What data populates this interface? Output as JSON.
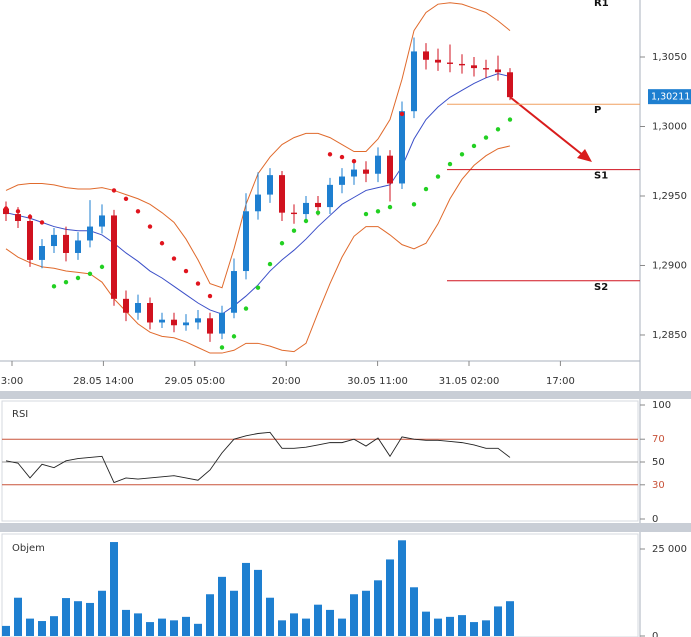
{
  "chart_data": [
    {
      "type": "candlestick",
      "x_labels": [
        "3:00",
        "28.05 14:00",
        "29.05 05:00",
        "20:00",
        "30.05 11:00",
        "31.05 02:00",
        "17:00"
      ],
      "open": [
        1.2941,
        1.2937,
        1.2932,
        1.2904,
        1.2914,
        1.2922,
        1.2909,
        1.2918,
        1.2928,
        1.2936,
        1.2876,
        1.2866,
        1.2873,
        1.2859,
        1.2861,
        1.2857,
        1.2859,
        1.2862,
        1.2851,
        1.2866,
        1.2896,
        1.2939,
        1.2951,
        1.2965,
        1.2938,
        1.2937,
        1.2945,
        1.2942,
        1.2958,
        1.2964,
        1.2969,
        1.2966,
        1.2979,
        1.2959,
        1.3011,
        1.3054,
        1.3048,
        1.3046,
        1.3045,
        1.3044,
        1.3042,
        1.3041,
        1.3039
      ],
      "high": [
        1.2946,
        1.2942,
        1.2937,
        1.2919,
        1.2927,
        1.2928,
        1.2924,
        1.2947,
        1.2944,
        1.294,
        1.2882,
        1.2879,
        1.2877,
        1.2866,
        1.2866,
        1.2865,
        1.2868,
        1.2866,
        1.2871,
        1.2905,
        1.2952,
        1.2967,
        1.297,
        1.2968,
        1.2944,
        1.295,
        1.295,
        1.2963,
        1.297,
        1.2975,
        1.2975,
        1.2985,
        1.2983,
        1.3018,
        1.3064,
        1.306,
        1.3056,
        1.3059,
        1.3052,
        1.305,
        1.3048,
        1.3051,
        1.3042
      ],
      "low": [
        1.2932,
        1.2927,
        1.2899,
        1.2898,
        1.2909,
        1.2903,
        1.2904,
        1.2913,
        1.2923,
        1.2871,
        1.286,
        1.2861,
        1.2854,
        1.2855,
        1.2852,
        1.2853,
        1.2854,
        1.2845,
        1.2847,
        1.2862,
        1.289,
        1.2933,
        1.2945,
        1.2932,
        1.293,
        1.2931,
        1.2936,
        1.2937,
        1.2952,
        1.2958,
        1.296,
        1.296,
        1.2946,
        1.2955,
        1.3006,
        1.3041,
        1.304,
        1.3039,
        1.3038,
        1.3036,
        1.3035,
        1.3033,
        1.3019
      ],
      "close": [
        1.2937,
        1.2932,
        1.2904,
        1.2914,
        1.2922,
        1.2909,
        1.2918,
        1.2928,
        1.2936,
        1.2876,
        1.2866,
        1.2873,
        1.2859,
        1.2861,
        1.2857,
        1.2859,
        1.2862,
        1.2851,
        1.2866,
        1.2896,
        1.2939,
        1.2951,
        1.2965,
        1.2938,
        1.2937,
        1.2945,
        1.2942,
        1.2958,
        1.2964,
        1.2969,
        1.2966,
        1.2979,
        1.2959,
        1.3011,
        1.3054,
        1.3048,
        1.3046,
        1.3045,
        1.3044,
        1.3042,
        1.3041,
        1.3039,
        1.30211
      ],
      "up_color": "#1e7fd0",
      "down_color": "#d0121f",
      "ma": {
        "color": "#3b4fc8",
        "values": [
          1.2938,
          1.2936,
          1.2934,
          1.2931,
          1.2928,
          1.2926,
          1.2925,
          1.2925,
          1.2922,
          1.2916,
          1.2909,
          1.2903,
          1.2896,
          1.2891,
          1.2885,
          1.2879,
          1.2873,
          1.2868,
          1.2865,
          1.2871,
          1.2878,
          1.2886,
          1.2896,
          1.2904,
          1.2911,
          1.2919,
          1.2928,
          1.2936,
          1.2944,
          1.2949,
          1.2954,
          1.2956,
          1.2958,
          1.2971,
          1.2991,
          1.3005,
          1.3014,
          1.3021,
          1.3026,
          1.3031,
          1.3035,
          1.3038,
          1.3036
        ]
      },
      "bollinger_upper": {
        "color": "#e06a2c",
        "values": [
          1.2954,
          1.2958,
          1.2959,
          1.2959,
          1.2958,
          1.2956,
          1.2955,
          1.2955,
          1.2956,
          1.2954,
          1.2951,
          1.2948,
          1.2944,
          1.2938,
          1.2931,
          1.2919,
          1.2904,
          1.2887,
          1.2884,
          1.2912,
          1.2944,
          1.2966,
          1.2978,
          1.2987,
          1.2992,
          1.2995,
          1.2995,
          1.2992,
          1.2987,
          1.2982,
          1.2982,
          1.2991,
          1.3005,
          1.3034,
          1.3069,
          1.3082,
          1.3088,
          1.3089,
          1.3088,
          1.3085,
          1.3082,
          1.3076,
          1.3069
        ]
      },
      "bollinger_lower": {
        "color": "#e06a2c",
        "values": [
          1.2912,
          1.2906,
          1.2902,
          1.2899,
          1.2898,
          1.2896,
          1.2895,
          1.2894,
          1.2888,
          1.2876,
          1.2867,
          1.2858,
          1.2852,
          1.2849,
          1.2848,
          1.2845,
          1.2841,
          1.2837,
          1.2837,
          1.2839,
          1.2844,
          1.2844,
          1.2842,
          1.2839,
          1.2838,
          1.2844,
          1.2866,
          1.2887,
          1.2906,
          1.2921,
          1.2928,
          1.2928,
          1.2922,
          1.2915,
          1.2912,
          1.2916,
          1.293,
          1.2948,
          1.2962,
          1.2972,
          1.2979,
          1.2984,
          1.2986
        ]
      },
      "sar_above": {
        "color": "#e0141e",
        "values": [
          1.2941,
          1.2939,
          1.2935,
          1.2931,
          null,
          null,
          null,
          null,
          null,
          1.2954,
          1.2948,
          1.2939,
          1.2928,
          1.2916,
          1.2905,
          1.2896,
          1.2887,
          1.2878,
          null,
          null,
          null,
          null,
          null,
          null,
          null,
          null,
          null,
          1.298,
          1.2978,
          1.2975,
          null,
          null,
          null,
          1.3009,
          null,
          null,
          null,
          null,
          null,
          null,
          null,
          null,
          null
        ]
      },
      "sar_below": {
        "color": "#22d022",
        "values": [
          null,
          null,
          null,
          null,
          1.2885,
          1.2888,
          1.2891,
          1.2894,
          1.2899,
          null,
          null,
          null,
          null,
          null,
          null,
          null,
          null,
          null,
          1.2841,
          1.2849,
          1.2869,
          1.2884,
          1.2901,
          1.2916,
          1.2925,
          1.2932,
          1.2938,
          null,
          null,
          null,
          1.2937,
          1.2939,
          1.2942,
          null,
          1.2944,
          1.2955,
          1.2964,
          1.2973,
          1.298,
          1.2986,
          1.2992,
          1.2998,
          1.3005
        ]
      },
      "pivots": [
        {
          "label": "R1",
          "value": 1.3093,
          "color": "#d0121f"
        },
        {
          "label": "P",
          "value": 1.3016,
          "color": "#f0a060"
        },
        {
          "label": "S1",
          "value": 1.2969,
          "color": "#d0121f"
        },
        {
          "label": "S2",
          "value": 1.2889,
          "color": "#d0121f"
        }
      ],
      "last_price": {
        "value": 1.30211,
        "label": "1,30211",
        "color": "#1e7fd0"
      },
      "ylim": [
        1.2832,
        1.3091
      ],
      "yticks": [
        {
          "value": 1.285,
          "label": "1,2850"
        },
        {
          "value": 1.29,
          "label": "1,2900"
        },
        {
          "value": 1.295,
          "label": "1,2950"
        },
        {
          "value": 1.3,
          "label": "1,3000"
        },
        {
          "value": 1.305,
          "label": "1,3050"
        }
      ]
    },
    {
      "type": "line",
      "title": "RSI",
      "color": "#222222",
      "level_color": "#c8533a",
      "values": [
        51,
        49,
        36,
        48,
        45,
        51,
        53,
        54,
        55,
        32,
        36,
        35,
        36,
        37,
        38,
        36,
        34,
        43,
        58,
        70,
        73,
        75,
        76,
        62,
        62,
        63,
        65,
        67,
        67,
        70,
        64,
        71,
        55,
        72,
        70,
        69,
        69,
        68,
        67,
        65,
        62,
        62,
        54
      ],
      "ylim": [
        0,
        100
      ],
      "yticks": [
        0,
        30,
        50,
        70,
        100
      ]
    },
    {
      "type": "bar",
      "title": "Objem",
      "color": "#1e7fd0",
      "values": [
        2900,
        11000,
        5000,
        4300,
        5700,
        10900,
        10000,
        9500,
        13000,
        27000,
        7500,
        6500,
        4000,
        5000,
        4500,
        5500,
        3500,
        12000,
        17000,
        13000,
        21000,
        19000,
        11000,
        4500,
        6500,
        5000,
        9000,
        7500,
        5000,
        12000,
        13000,
        16000,
        22000,
        27500,
        14000,
        7000,
        5000,
        5500,
        6000,
        4000,
        4500,
        8500,
        10000
      ],
      "ylim": [
        0,
        29600
      ],
      "yticks": [
        0,
        {
          "value": 25000,
          "label": "25 000"
        }
      ]
    }
  ]
}
